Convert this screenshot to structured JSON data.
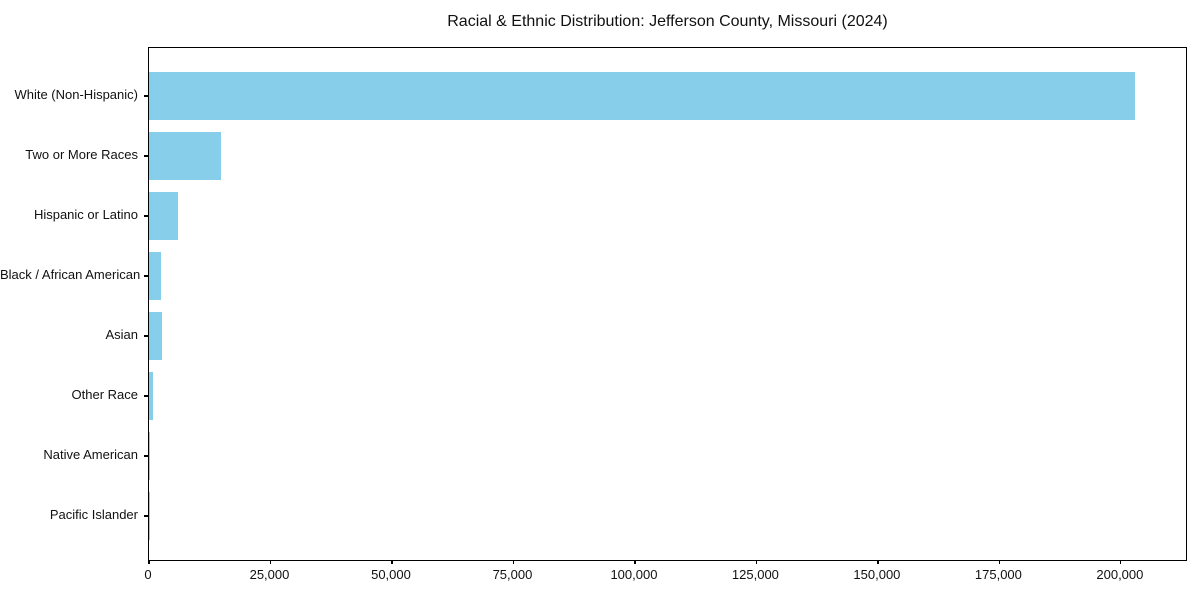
{
  "title": "Racial & Ethnic Distribution: Jefferson County, Missouri (2024)",
  "chart_data": {
    "type": "bar",
    "orientation": "horizontal",
    "title": "Racial & Ethnic Distribution: Jefferson County, Missouri (2024)",
    "categories": [
      "White (Non-Hispanic)",
      "Two or More Races",
      "Hispanic or Latino",
      "Black / African American",
      "Asian",
      "Other Race",
      "Native American",
      "Pacific Islander"
    ],
    "values": [
      202950,
      14800,
      6000,
      2500,
      2600,
      850,
      150,
      60
    ],
    "xlabel": "",
    "ylabel": "",
    "xlim": [
      0,
      213400
    ],
    "x_ticks": [
      0,
      25000,
      50000,
      75000,
      100000,
      125000,
      150000,
      175000,
      200000
    ],
    "x_tick_labels": [
      "0",
      "25,000",
      "50,000",
      "75,000",
      "100,000",
      "125,000",
      "150,000",
      "175,000",
      "200,000"
    ],
    "bar_color": "#87CEEB",
    "grid": false,
    "legend_position": "none"
  },
  "colors": {
    "bar": "#87CEEB",
    "spine": "#000000",
    "background": "#ffffff",
    "text": "#111111"
  }
}
